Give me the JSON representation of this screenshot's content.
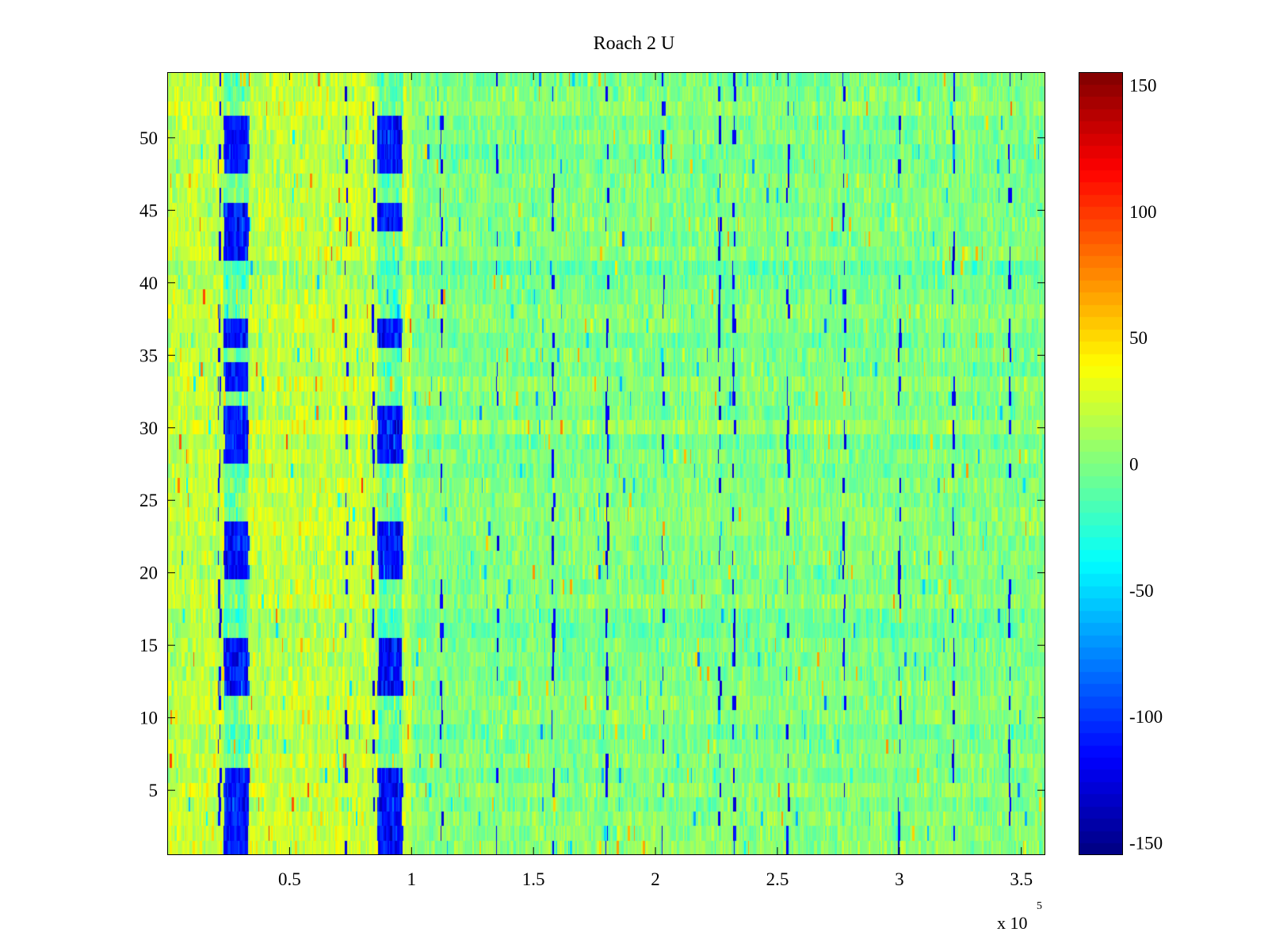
{
  "chart_data": {
    "type": "heatmap",
    "title": "Roach 2 U",
    "xlabel": "",
    "ylabel": "",
    "xlim": [
      0,
      360000
    ],
    "ylim": [
      0.5,
      54.5
    ],
    "x_ticks": [
      50000,
      100000,
      150000,
      200000,
      250000,
      300000,
      350000
    ],
    "x_tick_labels": [
      "0.5",
      "1",
      "1.5",
      "2",
      "2.5",
      "3",
      "3.5"
    ],
    "x_exponent_base": "x 10",
    "x_exponent_power": "5",
    "y_ticks": [
      5,
      10,
      15,
      20,
      25,
      30,
      35,
      40,
      45,
      50
    ],
    "y_tick_labels": [
      "5",
      "10",
      "15",
      "20",
      "25",
      "30",
      "35",
      "40",
      "45",
      "50"
    ],
    "rows": 54,
    "colormap": "jet",
    "clim": [
      -155,
      155
    ],
    "colorbar_ticks": [
      150,
      100,
      50,
      0,
      -50,
      -100,
      -150
    ],
    "colorbar_tick_labels": [
      "150",
      "100",
      "50",
      "0",
      "-50",
      "-100",
      "-150"
    ],
    "background_value": 0,
    "dip_columns": [
      {
        "x_range": [
          23000,
          33000
        ],
        "rows": [
          1,
          2,
          3,
          4,
          5,
          6,
          12,
          13,
          14,
          15,
          20,
          21,
          22,
          23,
          28,
          29,
          30,
          31,
          33,
          34,
          36,
          37,
          42,
          43,
          44,
          45,
          48,
          49,
          50,
          51
        ],
        "value": -110
      },
      {
        "x_range": [
          86000,
          96000
        ],
        "rows": [
          1,
          2,
          3,
          4,
          5,
          6,
          12,
          13,
          14,
          15,
          20,
          21,
          22,
          23,
          28,
          29,
          30,
          31,
          36,
          37,
          44,
          45,
          48,
          49,
          50,
          51
        ],
        "value": -110
      }
    ],
    "warm_region": {
      "x_range": [
        0,
        100000
      ],
      "value": 25
    },
    "vertical_streaks_x": [
      21000,
      73000,
      84000,
      112000,
      135000,
      158000,
      180000,
      203000,
      226000,
      232000,
      254000,
      277000,
      300000,
      322000,
      345000
    ]
  },
  "colors": {
    "background": "#ffffff",
    "axis": "#000000"
  }
}
